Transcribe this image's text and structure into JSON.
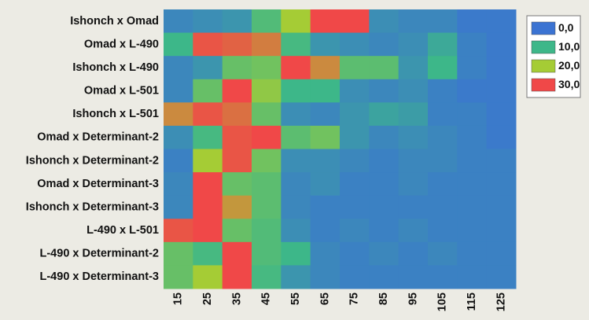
{
  "chart_data": {
    "type": "heatmap",
    "rows": [
      "Ishonch x Omad",
      "Omad x L-490",
      "Ishonch x L-490",
      "Omad x L-501",
      "Ishonch x L-501",
      "Omad x Determinant-2",
      "Ishonch x Determinant-2",
      "Omad x Determinant-3",
      "Ishonch x Determinant-3",
      "L-490 x L-501",
      "L-490 x Determinant-2",
      "L-490 x Determinant-3"
    ],
    "columns": [
      "15",
      "25",
      "35",
      "45",
      "55",
      "65",
      "75",
      "85",
      "95",
      "105",
      "115",
      "125"
    ],
    "values": [
      [
        3,
        4,
        5,
        12,
        20,
        30,
        30,
        4,
        3,
        3,
        1,
        1
      ],
      [
        10,
        29,
        28,
        26,
        11,
        5,
        4,
        3,
        4,
        8,
        2,
        1
      ],
      [
        3,
        5,
        14,
        15,
        30,
        25,
        13,
        13,
        5,
        10,
        2,
        1
      ],
      [
        3,
        14,
        30,
        18,
        10,
        10,
        4,
        3,
        4,
        2,
        1,
        1
      ],
      [
        25,
        29,
        27,
        14,
        4,
        3,
        5,
        7,
        6,
        2,
        2,
        1
      ],
      [
        4,
        11,
        29,
        30,
        13,
        15,
        5,
        3,
        4,
        3,
        2,
        1
      ],
      [
        2,
        20,
        29,
        15,
        4,
        4,
        3,
        2,
        3,
        3,
        2,
        2
      ],
      [
        3,
        30,
        14,
        13,
        3,
        4,
        2,
        2,
        3,
        2,
        2,
        2
      ],
      [
        3,
        30,
        24,
        13,
        3,
        2,
        2,
        2,
        2,
        2,
        2,
        2
      ],
      [
        29,
        30,
        14,
        12,
        4,
        2,
        3,
        2,
        3,
        2,
        2,
        2
      ],
      [
        14,
        11,
        30,
        12,
        10,
        3,
        2,
        3,
        2,
        3,
        2,
        2
      ],
      [
        14,
        20,
        30,
        11,
        5,
        3,
        2,
        2,
        2,
        2,
        2,
        2
      ]
    ],
    "scale": {
      "min": 0,
      "max": 30,
      "stops": [
        {
          "value": 0,
          "color": "#3b73d2"
        },
        {
          "value": 10,
          "color": "#3db789"
        },
        {
          "value": 20,
          "color": "#a5cc35"
        },
        {
          "value": 30,
          "color": "#f04848"
        }
      ]
    },
    "legend": {
      "position": "top-right",
      "entries": [
        {
          "label": "0,0",
          "color": "#3b73d2"
        },
        {
          "label": "10,0",
          "color": "#3db789"
        },
        {
          "label": "20,0",
          "color": "#a5cc35"
        },
        {
          "label": "30,0",
          "color": "#f04848"
        }
      ]
    },
    "title": "",
    "xlabel": "",
    "ylabel": ""
  }
}
